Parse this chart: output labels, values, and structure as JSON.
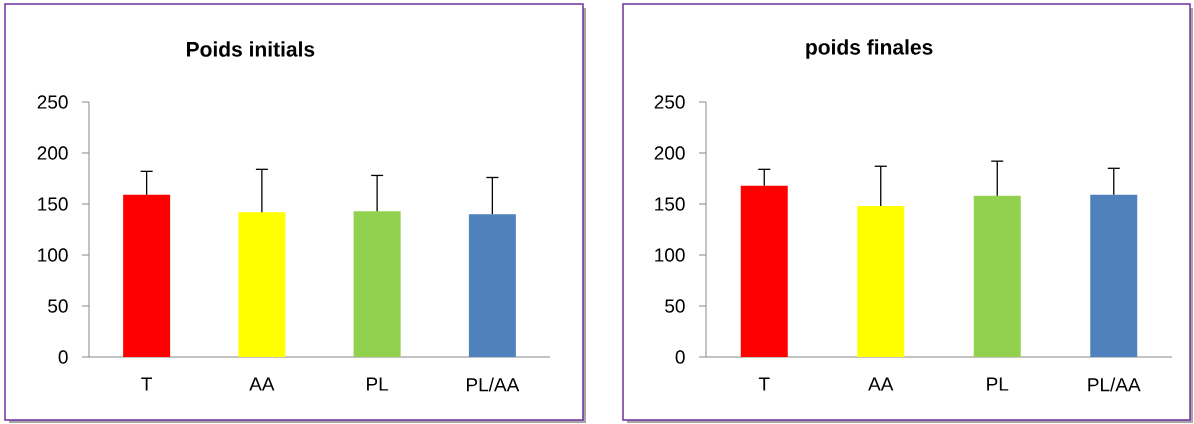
{
  "chart_data": [
    {
      "type": "bar",
      "title": "Poids initials",
      "categories": [
        "T",
        "AA",
        "PL",
        "PL/AA"
      ],
      "values": [
        159,
        142,
        143,
        140
      ],
      "colors": [
        "#ff0000",
        "#ffff00",
        "#92d050",
        "#4f81bd"
      ],
      "errors": [
        [
          159,
          182
        ],
        [
          142,
          184
        ],
        [
          143,
          178
        ],
        [
          140,
          176
        ]
      ],
      "ylim": [
        0,
        250
      ],
      "yticks": [
        0,
        50,
        100,
        150,
        200,
        250
      ]
    },
    {
      "type": "bar",
      "title": "poids finales",
      "categories": [
        "T",
        "AA",
        "PL",
        "PL/AA"
      ],
      "values": [
        168,
        148,
        158,
        159
      ],
      "colors": [
        "#ff0000",
        "#ffff00",
        "#92d050",
        "#4f81bd"
      ],
      "errors": [
        [
          168,
          184
        ],
        [
          148,
          187
        ],
        [
          158,
          192
        ],
        [
          159,
          185
        ]
      ],
      "ylim": [
        0,
        250
      ],
      "yticks": [
        0,
        50,
        100,
        150,
        200,
        250
      ]
    }
  ]
}
